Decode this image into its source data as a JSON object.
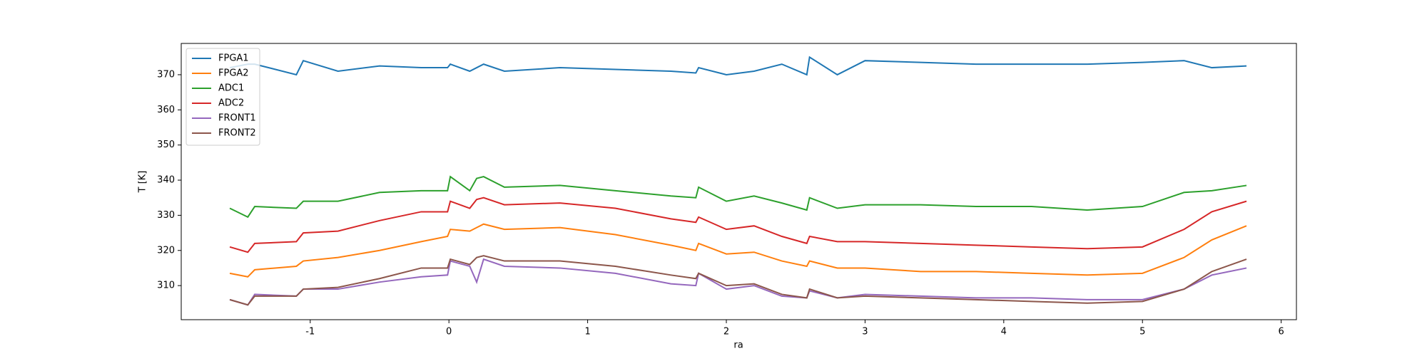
{
  "chart_data": {
    "type": "line",
    "xlabel": "ra",
    "ylabel": "T [K]",
    "x": [
      -1.58,
      -1.45,
      -1.4,
      -1.1,
      -1.05,
      -0.8,
      -0.5,
      -0.2,
      -0.01,
      0.01,
      0.15,
      0.2,
      0.25,
      0.4,
      0.8,
      1.2,
      1.6,
      1.78,
      1.8,
      2.0,
      2.2,
      2.4,
      2.58,
      2.6,
      2.8,
      3.0,
      3.4,
      3.8,
      4.2,
      4.6,
      5.0,
      5.3,
      5.5,
      5.75
    ],
    "series": [
      {
        "name": "FPGA1",
        "color": "#1f77b4",
        "values": [
          372,
          373,
          373,
          370,
          374,
          371,
          372.5,
          372,
          372,
          373,
          371,
          372,
          373,
          371,
          372,
          371.5,
          371,
          370.5,
          372,
          370,
          371,
          373,
          370,
          375,
          370,
          374,
          373.5,
          373,
          373,
          373,
          373.5,
          374,
          372,
          372.5
        ]
      },
      {
        "name": "FPGA2",
        "color": "#ff7f0e",
        "values": [
          313.5,
          312.5,
          314.5,
          315.5,
          317,
          318,
          320,
          322.5,
          324,
          326,
          325.5,
          326.5,
          327.5,
          326,
          326.5,
          324.5,
          321.5,
          320,
          322,
          319,
          319.5,
          317,
          315.5,
          317,
          315,
          315,
          314,
          314,
          313.5,
          313,
          313.5,
          318,
          323,
          327
        ]
      },
      {
        "name": "ADC1",
        "color": "#2ca02c",
        "values": [
          332,
          329.5,
          332.5,
          332,
          334,
          334,
          336.5,
          337,
          337,
          341,
          337,
          340.5,
          341,
          338,
          338.5,
          337,
          335.5,
          335,
          338,
          334,
          335.5,
          333.5,
          331.5,
          335,
          332,
          333,
          333,
          332.5,
          332.5,
          331.5,
          332.5,
          336.5,
          337,
          338.5
        ]
      },
      {
        "name": "ADC2",
        "color": "#d62728",
        "values": [
          321,
          319.5,
          322,
          322.5,
          325,
          325.5,
          328.5,
          331,
          331,
          334,
          332,
          334.5,
          335,
          333,
          333.5,
          332,
          329,
          328,
          329.5,
          326,
          327,
          324,
          322,
          324,
          322.5,
          322.5,
          322,
          321.5,
          321,
          320.5,
          321,
          326,
          331,
          334
        ]
      },
      {
        "name": "FRONT1",
        "color": "#9467bd",
        "values": [
          306,
          304.5,
          307.5,
          307,
          309,
          309,
          311,
          312.5,
          313,
          317,
          315.5,
          311,
          317.5,
          315.5,
          315,
          313.5,
          310.5,
          310,
          313.5,
          309,
          310,
          307,
          306.5,
          308.5,
          306.5,
          307.5,
          307,
          306.5,
          306.5,
          306,
          306,
          309,
          313,
          315
        ]
      },
      {
        "name": "FRONT2",
        "color": "#8c564b",
        "values": [
          306,
          304.5,
          307,
          307,
          309,
          309.5,
          312,
          315,
          315,
          317.5,
          316,
          318,
          318.5,
          317,
          317,
          315.5,
          313,
          312,
          313.5,
          310,
          310.5,
          307.5,
          306.5,
          309,
          306.5,
          307,
          306.5,
          306,
          305.5,
          305,
          305.5,
          309,
          314,
          317.5
        ]
      }
    ],
    "xlim": [
      -1.93,
      6.11
    ],
    "xticks": [
      -1,
      0,
      1,
      2,
      3,
      4,
      5,
      6
    ],
    "ylim": [
      300.3,
      378.9
    ],
    "yticks": [
      310,
      320,
      330,
      340,
      350,
      360,
      370
    ],
    "legend": "upper left",
    "grid": false
  }
}
